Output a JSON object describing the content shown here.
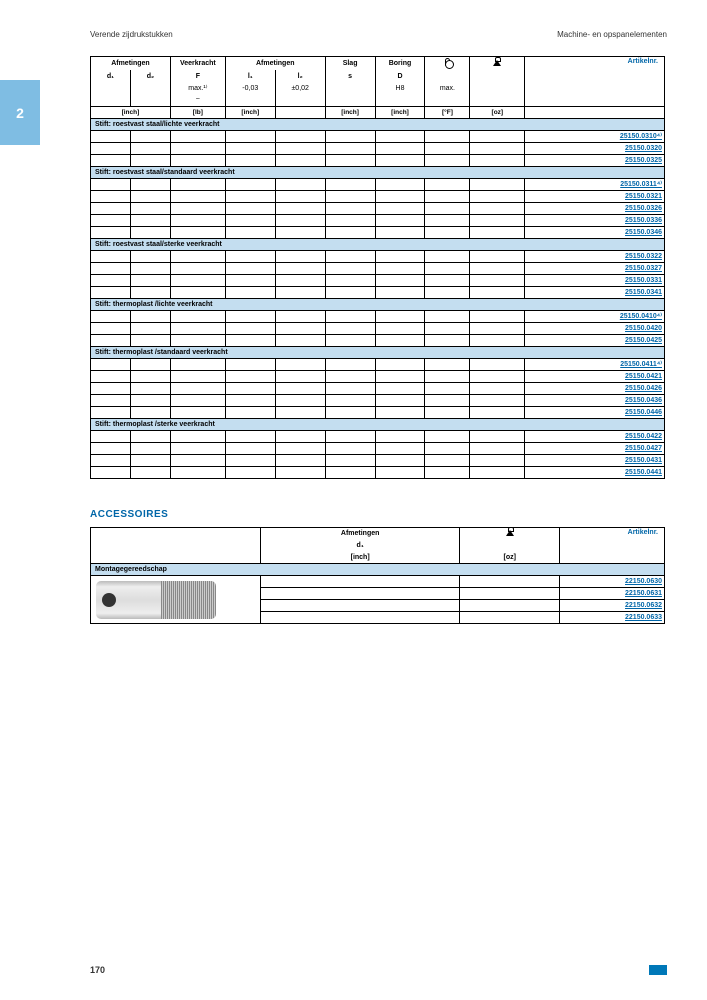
{
  "header": {
    "left": "Verende zijdrukstukken",
    "right": "Machine- en opspanelementen"
  },
  "sideTab": "2",
  "pageNumber": "170",
  "mainTable": {
    "headerGroups": [
      "Afmetingen",
      "Veerkracht",
      "Afmetingen",
      "Slag",
      "Boring",
      "",
      "",
      "Artikelnr."
    ],
    "headerSub": [
      "d₁",
      "d₂",
      "F",
      "l₁",
      "l₂",
      "s",
      "D",
      "",
      "",
      ""
    ],
    "headerSub2": [
      "",
      "",
      "max.¹⁾",
      "-0,03",
      "±0,02",
      "",
      "H8",
      "max.",
      "",
      ""
    ],
    "headerSub3": [
      "",
      "",
      "~",
      "",
      "",
      "",
      "",
      "",
      "",
      ""
    ],
    "unitRow": [
      "[inch]",
      "",
      "[lb]",
      "[inch]",
      "",
      "[inch]",
      "[inch]",
      "[°F]",
      "[oz]",
      ""
    ],
    "sections": [
      {
        "title": "Stift: roestvast staal/lichte veerkracht",
        "rows": 3,
        "artikels": [
          "25150.0310⁴⁾",
          "25150.0320",
          "25150.0325"
        ]
      },
      {
        "title": "Stift: roestvast staal/standaard veerkracht",
        "rows": 5,
        "artikels": [
          "25150.0311⁴⁾",
          "25150.0321",
          "25150.0326",
          "25150.0336",
          "25150.0346"
        ]
      },
      {
        "title": "Stift: roestvast staal/sterke veerkracht",
        "rows": 4,
        "artikels": [
          "25150.0322",
          "25150.0327",
          "25150.0331",
          "25150.0341"
        ]
      },
      {
        "title": "Stift: thermoplast /lichte veerkracht",
        "rows": 3,
        "artikels": [
          "25150.0410⁴⁾",
          "25150.0420",
          "25150.0425"
        ]
      },
      {
        "title": "Stift: thermoplast /standaard veerkracht",
        "rows": 5,
        "artikels": [
          "25150.0411⁴⁾",
          "25150.0421",
          "25150.0426",
          "25150.0436",
          "25150.0446"
        ]
      },
      {
        "title": "Stift: thermoplast /sterke veerkracht",
        "rows": 4,
        "artikels": [
          "25150.0422",
          "25150.0427",
          "25150.0431",
          "25150.0441"
        ]
      }
    ]
  },
  "accessoriesTitle": "ACCESSOIRES",
  "accTable": {
    "headerGroups": [
      "",
      "Afmetingen",
      "",
      "Artikelnr."
    ],
    "headerSub": [
      "",
      "d₁",
      "",
      ""
    ],
    "unitRow": [
      "",
      "[inch]",
      "[oz]",
      ""
    ],
    "sectionTitle": "Montagegereedschap",
    "rows": 4,
    "artikels": [
      "22150.0630",
      "22150.0631",
      "22150.0632",
      "22150.0633"
    ]
  },
  "colors": {
    "accentBlue": "#0066a8",
    "headerBlue": "#c4def0",
    "tabBlue": "#7fbde3"
  }
}
